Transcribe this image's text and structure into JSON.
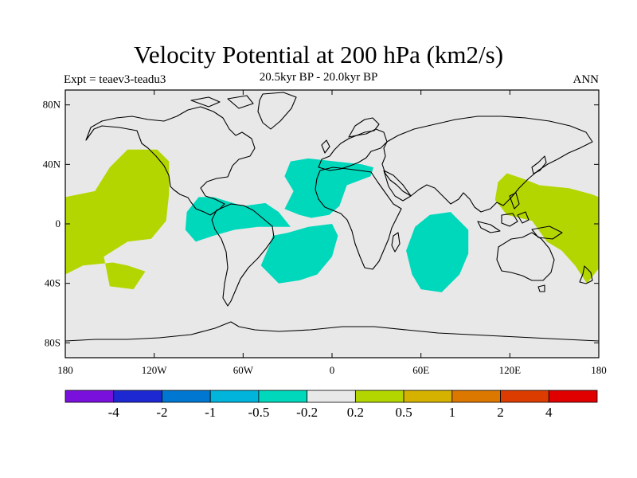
{
  "title": "Velocity Potential at 200 hPa (km2/s)",
  "left_label": "Expt = teaev3-teadu3",
  "center_label": "20.5kyr BP - 20.0kyr BP",
  "right_label": "ANN",
  "map": {
    "projection": "cylindrical-equidistant",
    "background_color": "#e8e8e8",
    "lon_range": [
      -180,
      180
    ],
    "lat_range": [
      -90,
      90
    ],
    "lat_ticks": [
      {
        "value": 80,
        "label": "80N"
      },
      {
        "value": 40,
        "label": "40N"
      },
      {
        "value": 0,
        "label": "0"
      },
      {
        "value": -40,
        "label": "40S"
      },
      {
        "value": -80,
        "label": "80S"
      }
    ],
    "lon_ticks": [
      {
        "value": -180,
        "label": "180"
      },
      {
        "value": -120,
        "label": "120W"
      },
      {
        "value": -60,
        "label": "60W"
      },
      {
        "value": 0,
        "label": "0"
      },
      {
        "value": 60,
        "label": "60E"
      },
      {
        "value": 120,
        "label": "120E"
      },
      {
        "value": 180,
        "label": "180"
      }
    ],
    "regions": [
      {
        "name": "positive-east-pacific",
        "level": "0.2-0.5",
        "color": "#b4d600",
        "coords": [
          [
            -180,
            18
          ],
          [
            -160,
            22
          ],
          [
            -150,
            38
          ],
          [
            -138,
            50
          ],
          [
            -118,
            50
          ],
          [
            -110,
            42
          ],
          [
            -110,
            20
          ],
          [
            -112,
            2
          ],
          [
            -122,
            -10
          ],
          [
            -138,
            -12
          ],
          [
            -154,
            -22
          ],
          [
            -150,
            -42
          ],
          [
            -134,
            -44
          ],
          [
            -126,
            -32
          ],
          [
            -138,
            -28
          ],
          [
            -148,
            -26
          ],
          [
            -168,
            -28
          ],
          [
            -180,
            -34
          ]
        ]
      },
      {
        "name": "positive-west-pacific",
        "level": "0.2-0.5",
        "color": "#b4d600",
        "coords": [
          [
            180,
            -30
          ],
          [
            172,
            -40
          ],
          [
            164,
            -28
          ],
          [
            155,
            -18
          ],
          [
            145,
            -12
          ],
          [
            135,
            2
          ],
          [
            118,
            6
          ],
          [
            110,
            16
          ],
          [
            112,
            28
          ],
          [
            118,
            34
          ],
          [
            130,
            30
          ],
          [
            140,
            26
          ],
          [
            160,
            24
          ],
          [
            175,
            20
          ],
          [
            180,
            18
          ]
        ]
      },
      {
        "name": "negative-south-america",
        "level": "-0.5--0.2",
        "color": "#00d8bc",
        "coords": [
          [
            -98,
            8
          ],
          [
            -90,
            18
          ],
          [
            -80,
            18
          ],
          [
            -60,
            12
          ],
          [
            -45,
            14
          ],
          [
            -36,
            8
          ],
          [
            -28,
            -2
          ],
          [
            -50,
            -2
          ],
          [
            -66,
            -4
          ],
          [
            -80,
            -8
          ],
          [
            -92,
            -12
          ],
          [
            -99,
            -4
          ]
        ]
      },
      {
        "name": "negative-africa-europe",
        "level": "-0.5--0.2",
        "color": "#00d8bc",
        "coords": [
          [
            -32,
            10
          ],
          [
            -26,
            22
          ],
          [
            -32,
            32
          ],
          [
            -28,
            42
          ],
          [
            -16,
            44
          ],
          [
            2,
            42
          ],
          [
            20,
            40
          ],
          [
            28,
            38
          ],
          [
            26,
            32
          ],
          [
            10,
            26
          ],
          [
            5,
            12
          ],
          [
            -2,
            6
          ],
          [
            -14,
            4
          ],
          [
            -22,
            6
          ]
        ]
      },
      {
        "name": "negative-south-atlantic",
        "level": "-0.5--0.2",
        "color": "#00d8bc",
        "coords": [
          [
            -40,
            -8
          ],
          [
            -30,
            -6
          ],
          [
            -16,
            -2
          ],
          [
            0,
            0
          ],
          [
            4,
            -8
          ],
          [
            0,
            -22
          ],
          [
            -10,
            -34
          ],
          [
            -22,
            -38
          ],
          [
            -36,
            -40
          ],
          [
            -48,
            -28
          ],
          [
            -42,
            -14
          ]
        ]
      },
      {
        "name": "negative-indian-ocean",
        "level": "-0.5--0.2",
        "color": "#00d8bc",
        "coords": [
          [
            66,
            6
          ],
          [
            80,
            8
          ],
          [
            92,
            -4
          ],
          [
            92,
            -20
          ],
          [
            86,
            -34
          ],
          [
            74,
            -46
          ],
          [
            60,
            -44
          ],
          [
            54,
            -34
          ],
          [
            50,
            -18
          ],
          [
            56,
            -2
          ]
        ]
      }
    ]
  },
  "colorbar": {
    "colors": [
      "#7a10dc",
      "#1e28d2",
      "#0078d2",
      "#00b4dc",
      "#00d8bc",
      "#e8e8e8",
      "#b4d600",
      "#d6b200",
      "#dc7800",
      "#dc3c00",
      "#e00000"
    ],
    "labels": [
      "-4",
      "-2",
      "-1",
      "-0.5",
      "-0.2",
      "0.2",
      "0.5",
      "1",
      "2",
      "4"
    ]
  }
}
